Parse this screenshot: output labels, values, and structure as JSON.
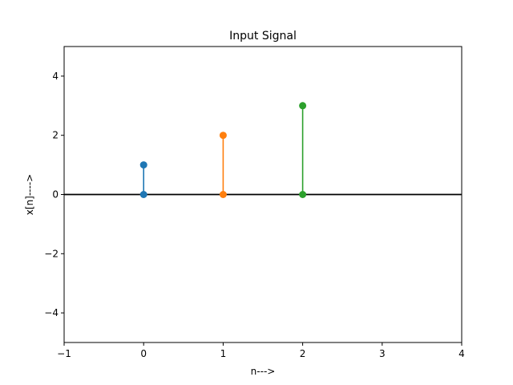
{
  "chart_data": {
    "type": "stem",
    "title": "Input Signal",
    "xlabel": "n--->",
    "ylabel": "x[n]---->",
    "xlim": [
      -1,
      4
    ],
    "ylim": [
      -5,
      5
    ],
    "x_ticks": [
      -1,
      0,
      1,
      2,
      3,
      4
    ],
    "y_ticks": [
      -4,
      -2,
      0,
      2,
      4
    ],
    "x_tick_labels": [
      "−1",
      "0",
      "1",
      "2",
      "3",
      "4"
    ],
    "y_tick_labels": [
      "−4",
      "−2",
      "0",
      "2",
      "4"
    ],
    "grid": false,
    "baseline_y": 0,
    "baseline_color": "#000000",
    "series": [
      {
        "x": 0,
        "y": 1,
        "color": "#1f77b4"
      },
      {
        "x": 1,
        "y": 2,
        "color": "#ff7f0e"
      },
      {
        "x": 2,
        "y": 3,
        "color": "#2ca02c"
      }
    ]
  }
}
